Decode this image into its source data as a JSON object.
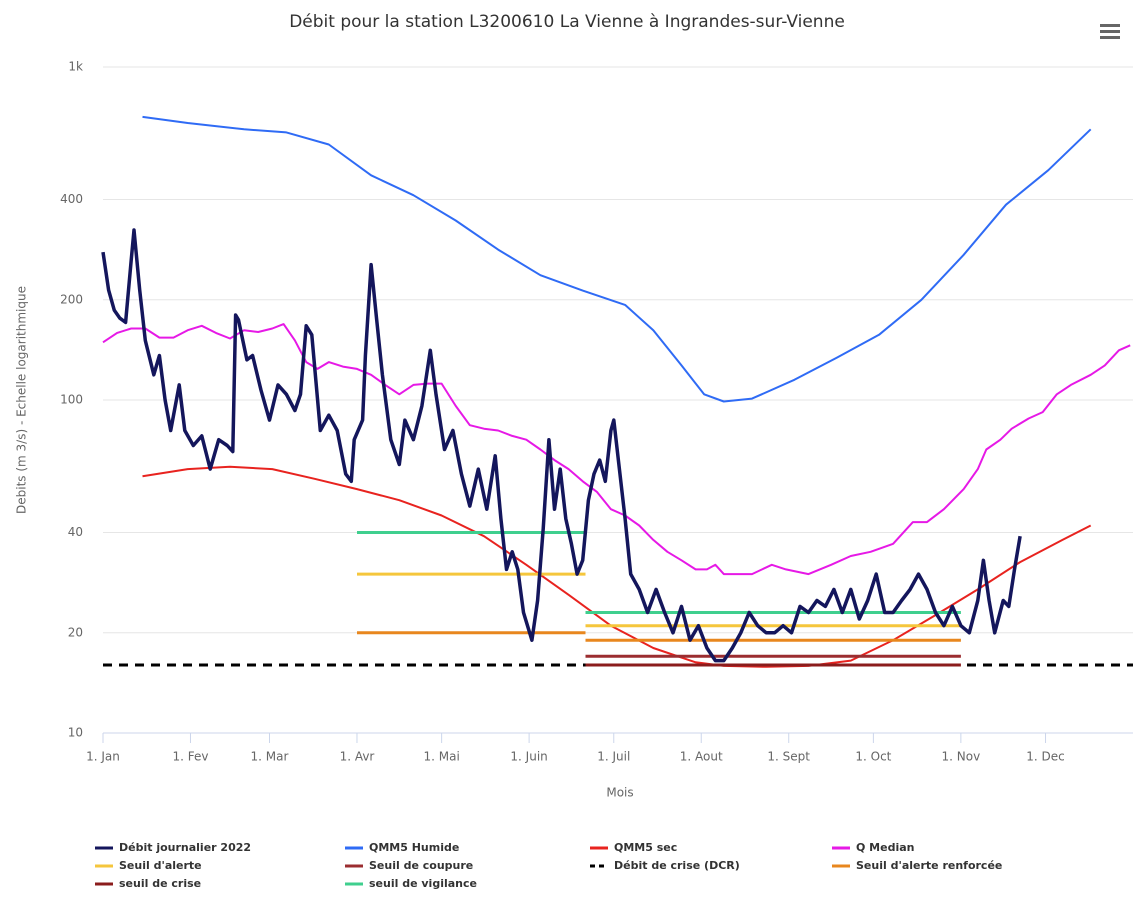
{
  "chart_data": {
    "type": "line",
    "title": "Débit pour la station L3200610 La Vienne à Ingrandes-sur-Vienne",
    "xlabel": "Mois",
    "ylabel": "Debits (m 3/s) - Echelle logarithmique",
    "yscale": "log",
    "grid": true,
    "legend": "bottom",
    "xlim": [
      0,
      365
    ],
    "xticks": [
      {
        "value": 0,
        "label": "1. Jan"
      },
      {
        "value": 31,
        "label": "1. Fev"
      },
      {
        "value": 59,
        "label": "1. Mar"
      },
      {
        "value": 90,
        "label": "1. Avr"
      },
      {
        "value": 120,
        "label": "1. Mai"
      },
      {
        "value": 151,
        "label": "1. Juin"
      },
      {
        "value": 181,
        "label": "1. Juil"
      },
      {
        "value": 212,
        "label": "1. Aout"
      },
      {
        "value": 243,
        "label": "1. Sept"
      },
      {
        "value": 273,
        "label": "1. Oct"
      },
      {
        "value": 304,
        "label": "1. Nov"
      },
      {
        "value": 334,
        "label": "1. Dec"
      }
    ],
    "ylim": [
      10,
      1000
    ],
    "yticks": [
      10,
      20,
      40,
      100,
      200,
      400,
      {
        "value": 1000,
        "label": "1k"
      }
    ],
    "series": [
      {
        "name": "Débit journalier 2022",
        "color": "#14165c",
        "width": 3.5,
        "x": [
          0,
          2,
          4,
          6,
          8,
          10,
          11,
          13,
          15,
          18,
          20,
          22,
          24,
          27,
          29,
          32,
          35,
          38,
          41,
          44,
          46,
          47,
          48,
          51,
          53,
          56,
          59,
          62,
          65,
          68,
          70,
          72,
          74,
          77,
          80,
          83,
          86,
          88,
          89,
          92,
          93,
          95,
          97,
          99,
          102,
          105,
          107,
          110,
          113,
          116,
          118,
          121,
          124,
          127,
          130,
          133,
          136,
          139,
          141,
          143,
          145,
          147,
          149,
          152,
          154,
          156,
          158,
          160,
          162,
          164,
          166,
          168,
          170,
          172,
          174,
          176,
          178,
          180,
          181,
          183,
          185,
          187,
          190,
          193,
          196,
          199,
          202,
          205,
          208,
          211,
          214,
          217,
          220,
          223,
          226,
          229,
          232,
          235,
          238,
          241,
          244,
          247,
          250,
          253,
          256,
          259,
          262,
          265,
          268,
          271,
          274,
          277,
          280,
          283,
          286,
          289,
          292,
          295,
          298,
          301,
          304,
          307,
          310,
          312,
          314,
          316,
          319,
          321,
          323,
          325
        ],
        "values": [
          278,
          214,
          186,
          176,
          171,
          263,
          324,
          214,
          151,
          119,
          136,
          100,
          81,
          111,
          81,
          73,
          78,
          62,
          76,
          73,
          70,
          180,
          174,
          132,
          136,
          107,
          87,
          111,
          104,
          93,
          104,
          167,
          157,
          81,
          90,
          81,
          60,
          57,
          76,
          87,
          136,
          255,
          174,
          119,
          76,
          64,
          87,
          76,
          96,
          141,
          104,
          71,
          81,
          60,
          48,
          62,
          47,
          68,
          44,
          31,
          35,
          31,
          23,
          19,
          25,
          41,
          76,
          47,
          62,
          44,
          37,
          30,
          33,
          50,
          60,
          66,
          57,
          81,
          87,
          62,
          44,
          30,
          27,
          23,
          27,
          23,
          20,
          24,
          19,
          21,
          18,
          16.5,
          16.5,
          18,
          20,
          23,
          21,
          20,
          20,
          21,
          20,
          24,
          23,
          25,
          24,
          27,
          23,
          27,
          22,
          25,
          30,
          23,
          23,
          25,
          27,
          30,
          27,
          23,
          21,
          24,
          21,
          20,
          25,
          33,
          25,
          20,
          25,
          24,
          31,
          39
        ]
      },
      {
        "name": "QMM5 Humide",
        "color": "#2f6bf5",
        "width": 2,
        "x": [
          14,
          30,
          50,
          65,
          80,
          95,
          110,
          125,
          140,
          155,
          170,
          185,
          195,
          205,
          213,
          220,
          230,
          245,
          260,
          275,
          290,
          305,
          320,
          335,
          350
        ],
        "values": [
          708,
          679,
          650,
          636,
          585,
          473,
          412,
          346,
          283,
          237,
          213,
          193,
          162,
          127,
          104,
          99,
          101,
          115,
          134,
          157,
          200,
          273,
          386,
          490,
          650
        ]
      },
      {
        "name": "QMM5 sec",
        "color": "#e8231f",
        "width": 2,
        "x": [
          14,
          30,
          45,
          60,
          75,
          90,
          105,
          120,
          135,
          150,
          165,
          180,
          195,
          210,
          220,
          235,
          250,
          265,
          280,
          295,
          310,
          325,
          340,
          350
        ],
        "values": [
          59,
          62,
          63,
          62,
          58,
          54,
          50,
          45,
          39,
          32,
          26,
          21,
          18,
          16.3,
          15.9,
          15.8,
          15.9,
          16.5,
          19,
          22.6,
          27,
          32.6,
          38,
          42
        ]
      },
      {
        "name": "Q Median",
        "color": "#e619e6",
        "width": 2,
        "x": [
          0,
          5,
          10,
          15,
          20,
          25,
          30,
          35,
          40,
          45,
          50,
          55,
          60,
          64,
          68,
          72,
          76,
          80,
          85,
          90,
          95,
          100,
          105,
          110,
          115,
          120,
          125,
          130,
          135,
          140,
          145,
          150,
          155,
          160,
          165,
          170,
          175,
          180,
          185,
          190,
          195,
          200,
          205,
          210,
          214,
          217,
          220,
          230,
          237,
          242,
          250,
          258,
          265,
          272,
          280,
          287,
          292,
          298,
          305,
          310,
          313,
          318,
          322,
          328,
          333,
          338,
          343,
          350,
          355,
          360,
          364
        ],
        "values": [
          149,
          159,
          164,
          164,
          154,
          154,
          162,
          167,
          159,
          153,
          162,
          160,
          164,
          169,
          151,
          130,
          124,
          130,
          126,
          124,
          119,
          111,
          104,
          111,
          112,
          112,
          96,
          84,
          82,
          81,
          78,
          76,
          71,
          66,
          62,
          57,
          53,
          47,
          45,
          42,
          38,
          35,
          33,
          31,
          31,
          32,
          30,
          30,
          32,
          31,
          30,
          32,
          34,
          35,
          37,
          43,
          43,
          47,
          54,
          62,
          71,
          76,
          82,
          88,
          92,
          104,
          111,
          119,
          127,
          141,
          146
        ]
      },
      {
        "name": "Seuil d'alerte",
        "color": "#f5c63c",
        "width": 3,
        "x": [
          90,
          171,
          171,
          171,
          304
        ],
        "values": [
          30,
          30,
          null,
          21,
          21
        ]
      },
      {
        "name": "Seuil de coupure",
        "color": "#9b2d30",
        "width": 3,
        "x": [
          171,
          304
        ],
        "values": [
          17,
          17
        ]
      },
      {
        "name": "Débit de crise (DCR)",
        "color": "#000000",
        "width": 3,
        "dash": true,
        "x": [
          0,
          365
        ],
        "values": [
          16,
          16
        ]
      },
      {
        "name": "Seuil d'alerte renforcée",
        "color": "#e8871e",
        "width": 3,
        "x": [
          90,
          171,
          171,
          171,
          304
        ],
        "values": [
          20,
          20,
          null,
          19,
          19
        ]
      },
      {
        "name": "seuil de crise",
        "color": "#8b1c1c",
        "width": 3,
        "x": [
          171,
          304
        ],
        "values": [
          16,
          16
        ]
      },
      {
        "name": "seuil de vigilance",
        "color": "#3fcf8e",
        "width": 3,
        "x": [
          90,
          171,
          171,
          171,
          304
        ],
        "values": [
          40,
          40,
          null,
          23,
          23
        ]
      }
    ]
  }
}
